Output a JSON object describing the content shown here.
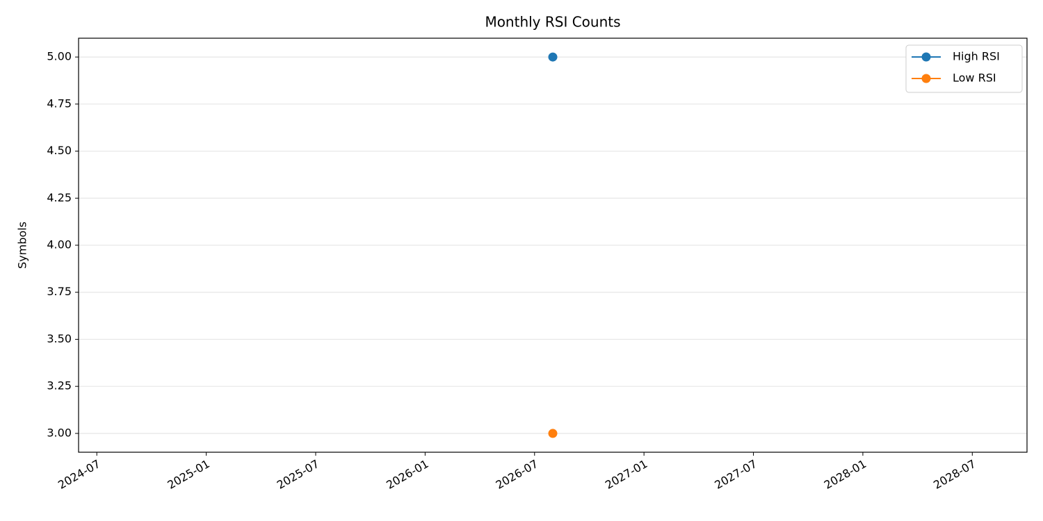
{
  "chart_data": {
    "type": "line",
    "title": "Monthly RSI Counts",
    "ylabel": "Symbols",
    "x": [
      "2026-08"
    ],
    "series": [
      {
        "name": "High RSI",
        "color": "#1f77b4",
        "values": [
          5
        ]
      },
      {
        "name": "Low RSI",
        "color": "#ff7f0e",
        "values": [
          3
        ]
      }
    ],
    "xlim": [
      "2024-06",
      "2028-10"
    ],
    "xticks": [
      "2024-07",
      "2025-01",
      "2025-07",
      "2026-01",
      "2026-07",
      "2027-01",
      "2027-07",
      "2028-01",
      "2028-07"
    ],
    "ylim": [
      2.9,
      5.1
    ],
    "yticks": [
      {
        "value": 3,
        "label": "3.00"
      },
      {
        "value": 3.25,
        "label": "3.25"
      },
      {
        "value": 3.5,
        "label": "3.50"
      },
      {
        "value": 3.75,
        "label": "3.75"
      },
      {
        "value": 4,
        "label": "4.00"
      },
      {
        "value": 4.25,
        "label": "4.25"
      },
      {
        "value": 4.5,
        "label": "4.50"
      },
      {
        "value": 4.75,
        "label": "4.75"
      },
      {
        "value": 5,
        "label": "5.00"
      }
    ],
    "grid": "y",
    "legend": "upper right"
  }
}
